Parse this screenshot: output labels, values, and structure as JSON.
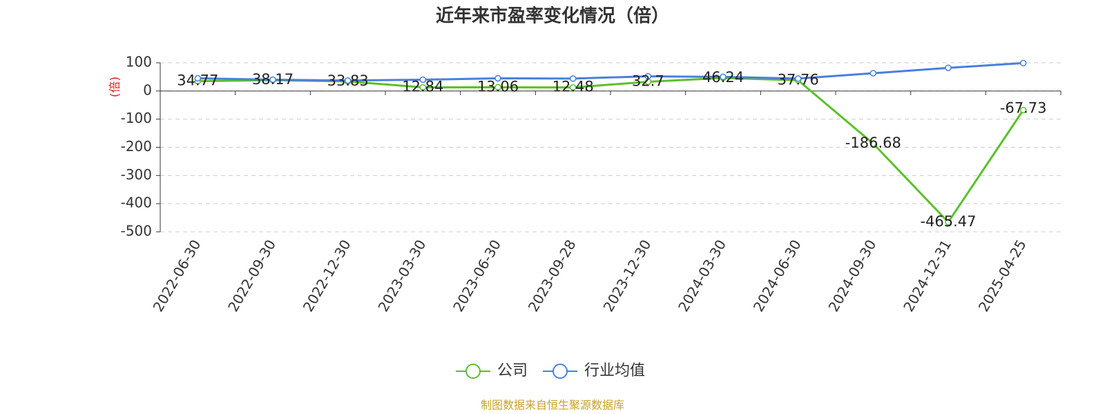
{
  "chart_data": {
    "type": "line",
    "title": "近年来市盈率变化情况（倍）",
    "y_label": "(倍)",
    "categories": [
      "2022-06-30",
      "2022-09-30",
      "2022-12-30",
      "2023-03-30",
      "2023-06-30",
      "2023-09-28",
      "2023-12-30",
      "2024-03-30",
      "2024-06-30",
      "2024-09-30",
      "2024-12-31",
      "2025-04-25"
    ],
    "series": [
      {
        "name": "公司",
        "color": "#5ac02a",
        "values": [
          34.77,
          38.17,
          33.83,
          12.84,
          13.06,
          12.48,
          32.7,
          46.24,
          37.76,
          -186.68,
          -465.47,
          -67.73
        ]
      },
      {
        "name": "行业均值",
        "color": "#4a7fdc",
        "values": [
          45,
          40,
          37,
          40,
          45,
          44,
          52,
          50,
          44,
          63,
          82,
          99
        ]
      }
    ],
    "ylim": [
      -500,
      100
    ],
    "yticks": [
      -500,
      -400,
      -300,
      -200,
      -100,
      0,
      100
    ],
    "grid": true,
    "source": "制图数据来自恒生聚源数据库"
  }
}
